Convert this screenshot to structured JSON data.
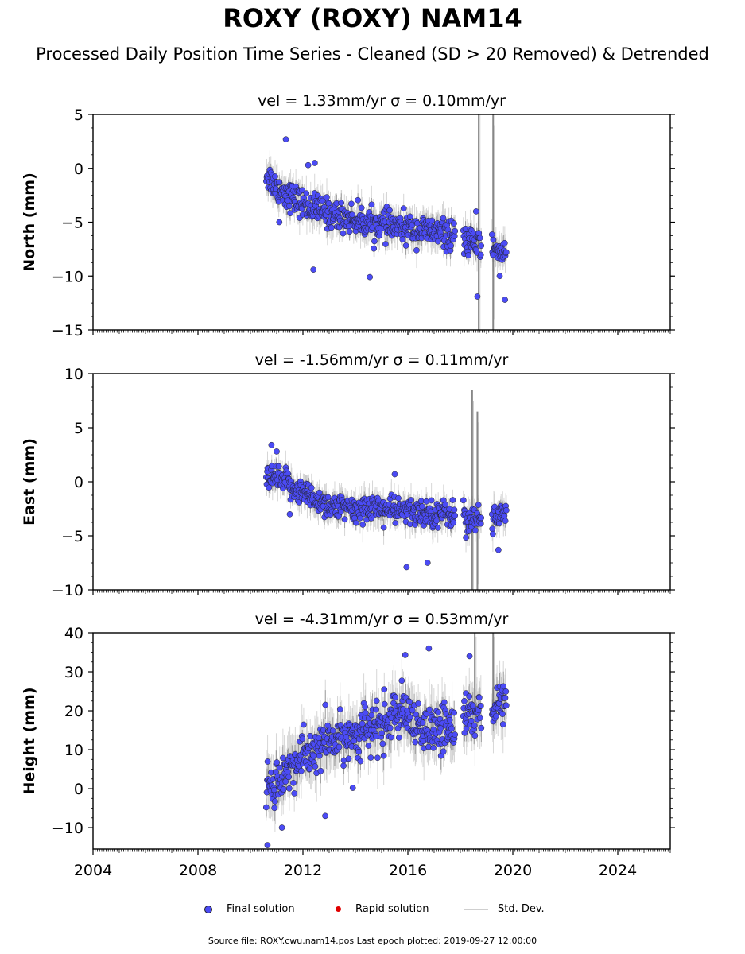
{
  "title": "ROXY (ROXY) NAM14",
  "subtitle": "Processed Daily Position Time Series - Cleaned (SD > 20 Removed) & Detrended",
  "legend": {
    "final": "Final solution",
    "rapid": "Rapid solution",
    "std": "Std. Dev."
  },
  "footer": "Source file: ROXY.cwu.nam14.pos  Last epoch plotted: 2019-09-27 12:00:00",
  "colors": {
    "final": "#4b4bf5",
    "rapid": "#e00000",
    "std": "#cfcfcf",
    "std_dense": "#6a6a6a",
    "marker_edge": "#222222"
  },
  "chart_data": [
    {
      "type": "scatter",
      "panel": "north",
      "title": "vel = 1.33mm/yr   σ = 0.10mm/yr",
      "ylabel": "North (mm)",
      "xlim": [
        2004,
        2026
      ],
      "ylim": [
        -15,
        5
      ],
      "yticks": [
        -15,
        -10,
        -5,
        0,
        5
      ],
      "ytick_labels": [
        "−15",
        "−10",
        "−5",
        "0",
        "5"
      ],
      "xticks": [
        2004,
        2008,
        2012,
        2016,
        2020,
        2024
      ],
      "show_xticklabels": false,
      "trend": [
        [
          2010.6,
          -0.5
        ],
        [
          2011.0,
          -1.8
        ],
        [
          2012.0,
          -3.3
        ],
        [
          2013.0,
          -4.2
        ],
        [
          2014.0,
          -4.8
        ],
        [
          2015.0,
          -5.3
        ],
        [
          2016.0,
          -5.6
        ],
        [
          2017.0,
          -5.9
        ],
        [
          2017.8,
          -6.3
        ],
        [
          2018.2,
          -6.8
        ],
        [
          2018.8,
          -7.2
        ],
        [
          2019.2,
          -7.4
        ],
        [
          2019.75,
          -7.8
        ]
      ],
      "gaps": [
        [
          2017.8,
          2018.1
        ],
        [
          2018.8,
          2019.2
        ]
      ],
      "spread": 1.2,
      "outliers": [
        [
          2011.35,
          2.7
        ],
        [
          2012.2,
          0.3
        ],
        [
          2012.45,
          0.5
        ],
        [
          2012.4,
          -9.4
        ],
        [
          2014.55,
          -10.1
        ],
        [
          2018.65,
          -11.9
        ],
        [
          2019.7,
          -12.2
        ],
        [
          2019.5,
          -10.0
        ],
        [
          2011.1,
          -5.0
        ],
        [
          2018.6,
          -4.0
        ]
      ],
      "big_errors": [
        [
          2018.7,
          -16.0,
          6.0
        ],
        [
          2019.25,
          -15.0,
          5.0
        ]
      ]
    },
    {
      "type": "scatter",
      "panel": "east",
      "title": "vel = -1.56mm/yr   σ = 0.11mm/yr",
      "ylabel": "East (mm)",
      "xlim": [
        2004,
        2026
      ],
      "ylim": [
        -10,
        10
      ],
      "yticks": [
        -10,
        -5,
        0,
        5,
        10
      ],
      "ytick_labels": [
        "−10",
        "−5",
        "0",
        "5",
        "10"
      ],
      "xticks": [
        2004,
        2008,
        2012,
        2016,
        2020,
        2024
      ],
      "show_xticklabels": false,
      "trend": [
        [
          2010.6,
          0.2
        ],
        [
          2011.0,
          0.3
        ],
        [
          2012.0,
          -1.0
        ],
        [
          2013.0,
          -2.2
        ],
        [
          2014.0,
          -2.7
        ],
        [
          2014.6,
          -2.2
        ],
        [
          2015.0,
          -2.5
        ],
        [
          2016.0,
          -2.8
        ],
        [
          2017.0,
          -2.9
        ],
        [
          2017.8,
          -3.0
        ],
        [
          2018.2,
          -3.2
        ],
        [
          2018.8,
          -3.6
        ],
        [
          2019.2,
          -3.4
        ],
        [
          2019.75,
          -2.8
        ]
      ],
      "gaps": [
        [
          2017.8,
          2018.1
        ],
        [
          2018.8,
          2019.2
        ]
      ],
      "spread": 1.1,
      "outliers": [
        [
          2010.8,
          3.4
        ],
        [
          2011.0,
          2.8
        ],
        [
          2015.95,
          -7.9
        ],
        [
          2016.75,
          -7.5
        ],
        [
          2015.5,
          0.7
        ],
        [
          2019.45,
          -6.3
        ],
        [
          2011.5,
          -3.0
        ]
      ],
      "big_errors": [
        [
          2018.45,
          -11.0,
          8.5
        ],
        [
          2018.65,
          -10.5,
          6.5
        ]
      ]
    },
    {
      "type": "scatter",
      "panel": "height",
      "title": "vel = -4.31mm/yr   σ = 0.53mm/yr",
      "ylabel": "Height (mm)",
      "xlim": [
        2004,
        2026
      ],
      "ylim": [
        -15.5,
        40
      ],
      "yticks": [
        -10,
        0,
        10,
        20,
        30,
        40
      ],
      "ytick_labels": [
        "−10",
        "0",
        "10",
        "20",
        "30",
        "40"
      ],
      "xticks": [
        2004,
        2008,
        2012,
        2016,
        2020,
        2024
      ],
      "xtick_labels": [
        "2004",
        "2008",
        "2012",
        "2016",
        "2020",
        "2024"
      ],
      "show_xticklabels": true,
      "trend": [
        [
          2010.6,
          0.0
        ],
        [
          2011.0,
          2.0
        ],
        [
          2011.5,
          5.0
        ],
        [
          2012.0,
          8.0
        ],
        [
          2013.0,
          12.0
        ],
        [
          2014.0,
          14.0
        ],
        [
          2015.0,
          16.0
        ],
        [
          2015.6,
          20.0
        ],
        [
          2016.0,
          17.0
        ],
        [
          2016.6,
          14.0
        ],
        [
          2017.0,
          15.0
        ],
        [
          2017.8,
          16.0
        ],
        [
          2018.2,
          19.0
        ],
        [
          2018.8,
          19.0
        ],
        [
          2019.2,
          21.0
        ],
        [
          2019.75,
          22.0
        ]
      ],
      "gaps": [
        [
          2017.8,
          2018.1
        ],
        [
          2018.8,
          2019.2
        ]
      ],
      "spread": 5.5,
      "outliers": [
        [
          2010.65,
          -14.5
        ],
        [
          2012.85,
          -7.0
        ],
        [
          2016.8,
          36.0
        ],
        [
          2018.35,
          34.0
        ],
        [
          2015.9,
          34.3
        ],
        [
          2011.2,
          -10.0
        ],
        [
          2013.9,
          0.2
        ]
      ],
      "big_errors": [
        [
          2018.55,
          22.0,
          40.0
        ],
        [
          2019.25,
          20.0,
          40.0
        ]
      ]
    }
  ]
}
